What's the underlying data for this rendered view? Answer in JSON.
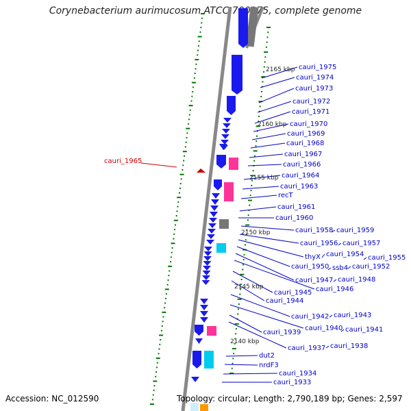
{
  "header": {
    "title": "Corynebacterium aurimucosum ATCC 700975, complete genome"
  },
  "footer": {
    "accession": "Accession: NC_012590",
    "topology": "Topology: circular; Length: 2,790,189 bp; Genes: 2,597"
  },
  "colors": {
    "gene_label": "#0000cc",
    "highlight_label": "#cc0000",
    "forward_gene": "#1a1aee",
    "trna": "#ff3399",
    "rrna": "#00ccee",
    "other": "#777777",
    "backbone": "#888888",
    "ticks": "#007700"
  },
  "kbp_markers": [
    "2165 kbp",
    "2160 kbp",
    "2155 kbp",
    "2150 kbp",
    "2145 kbp",
    "2140 kbp"
  ],
  "highlight_gene": {
    "label": "cauri_1965"
  },
  "gene_labels": [
    "cauri_1975",
    "cauri_1974",
    "cauri_1973",
    "cauri_1972",
    "cauri_1971",
    "cauri_1970",
    "cauri_1969",
    "cauri_1968",
    "cauri_1967",
    "cauri_1966",
    "cauri_1964",
    "cauri_1963",
    "recT",
    "cauri_1961",
    "cauri_1960",
    "cauri_1958",
    "cauri_1959",
    "cauri_1956",
    "cauri_1957",
    "thyX",
    "cauri_1954",
    "cauri_1955",
    "cauri_1950",
    "ssb4",
    "cauri_1952",
    "cauri_1947",
    "cauri_1948",
    "cauri_1946",
    "cauri_1945",
    "cauri_1944",
    "cauri_1942",
    "cauri_1943",
    "cauri_1940",
    "cauri_1941",
    "cauri_1939",
    "cauri_1937",
    "cauri_1938",
    "dut2",
    "nrdF3",
    "cauri_1934",
    "cauri_1933"
  ]
}
